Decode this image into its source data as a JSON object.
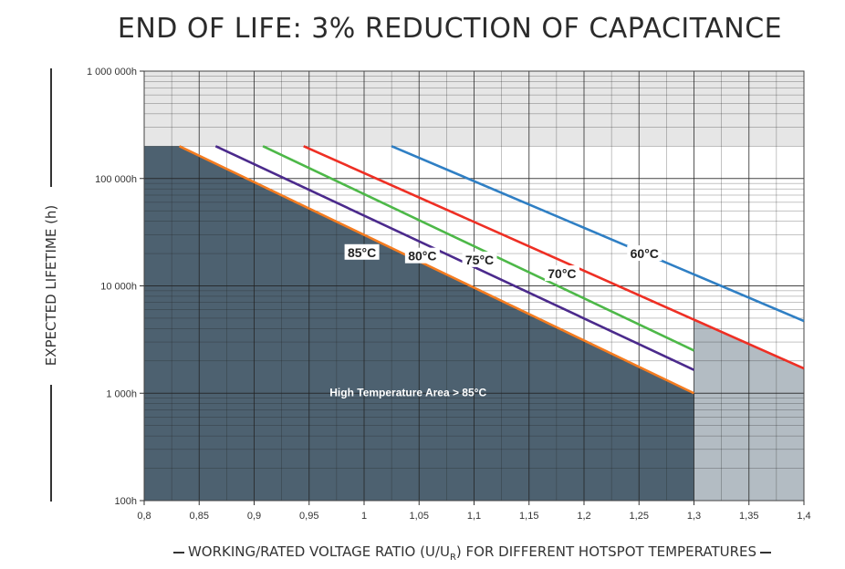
{
  "chart_data": {
    "type": "line",
    "title": "END OF LIFE: 3% REDUCTION OF CAPACITANCE",
    "ylabel": "EXPECTED LIFETIME (h)",
    "xlabel": {
      "prefix": "WORKING/RATED VOLTAGE RATIO (U/U",
      "subscript": "R",
      "suffix": ") FOR DIFFERENT HOTSPOT TEMPERATURES"
    },
    "x_scale": "linear",
    "y_scale": "log",
    "xlim": [
      0.8,
      1.4
    ],
    "ylim": [
      100,
      1000000
    ],
    "x_ticks": [
      0.8,
      0.85,
      0.9,
      0.95,
      1.0,
      1.05,
      1.1,
      1.15,
      1.2,
      1.25,
      1.3,
      1.35,
      1.4
    ],
    "x_tick_labels": [
      "0,8",
      "0,85",
      "0,9",
      "0,95",
      "1",
      "1,05",
      "1,1",
      "1,15",
      "1,2",
      "1,25",
      "1,3",
      "1,35",
      "1,4"
    ],
    "y_ticks": [
      100,
      1000,
      10000,
      100000,
      1000000
    ],
    "y_tick_labels": [
      "100h",
      "1 000h",
      "10 000h",
      "100 000h",
      "1 000 000h"
    ],
    "grid": true,
    "series": [
      {
        "name": "60°C",
        "color": "#2f7fc4",
        "x": [
          1.025,
          1.4
        ],
        "y": [
          200000,
          4700
        ],
        "label_at": {
          "x": 1.255,
          "y": 20000
        }
      },
      {
        "name": "70°C",
        "color": "#ee2f24",
        "x": [
          0.945,
          1.4
        ],
        "y": [
          200000,
          1700
        ],
        "label_at": {
          "x": 1.18,
          "y": 13000
        }
      },
      {
        "name": "75°C",
        "color": "#4db848",
        "x": [
          0.908,
          1.3
        ],
        "y": [
          200000,
          2500
        ],
        "label_at": {
          "x": 1.105,
          "y": 17500
        }
      },
      {
        "name": "80°C",
        "color": "#4b2a8c",
        "x": [
          0.865,
          1.3
        ],
        "y": [
          200000,
          1650
        ],
        "label_at": {
          "x": 1.053,
          "y": 19000
        }
      },
      {
        "name": "85°C",
        "color": "#f47c20",
        "x": [
          0.832,
          1.3
        ],
        "y": [
          200000,
          1000
        ],
        "label_at": {
          "x": 0.998,
          "y": 20500
        }
      }
    ],
    "annotations": {
      "high_temp_area": "High Temperature Area > 85°C",
      "upper_band_from": 200000
    },
    "colors": {
      "dark_area": "#4d6170",
      "light_area": "#b3bcc3",
      "upper_band": "#e6e6e6",
      "grid": "#222222"
    }
  }
}
